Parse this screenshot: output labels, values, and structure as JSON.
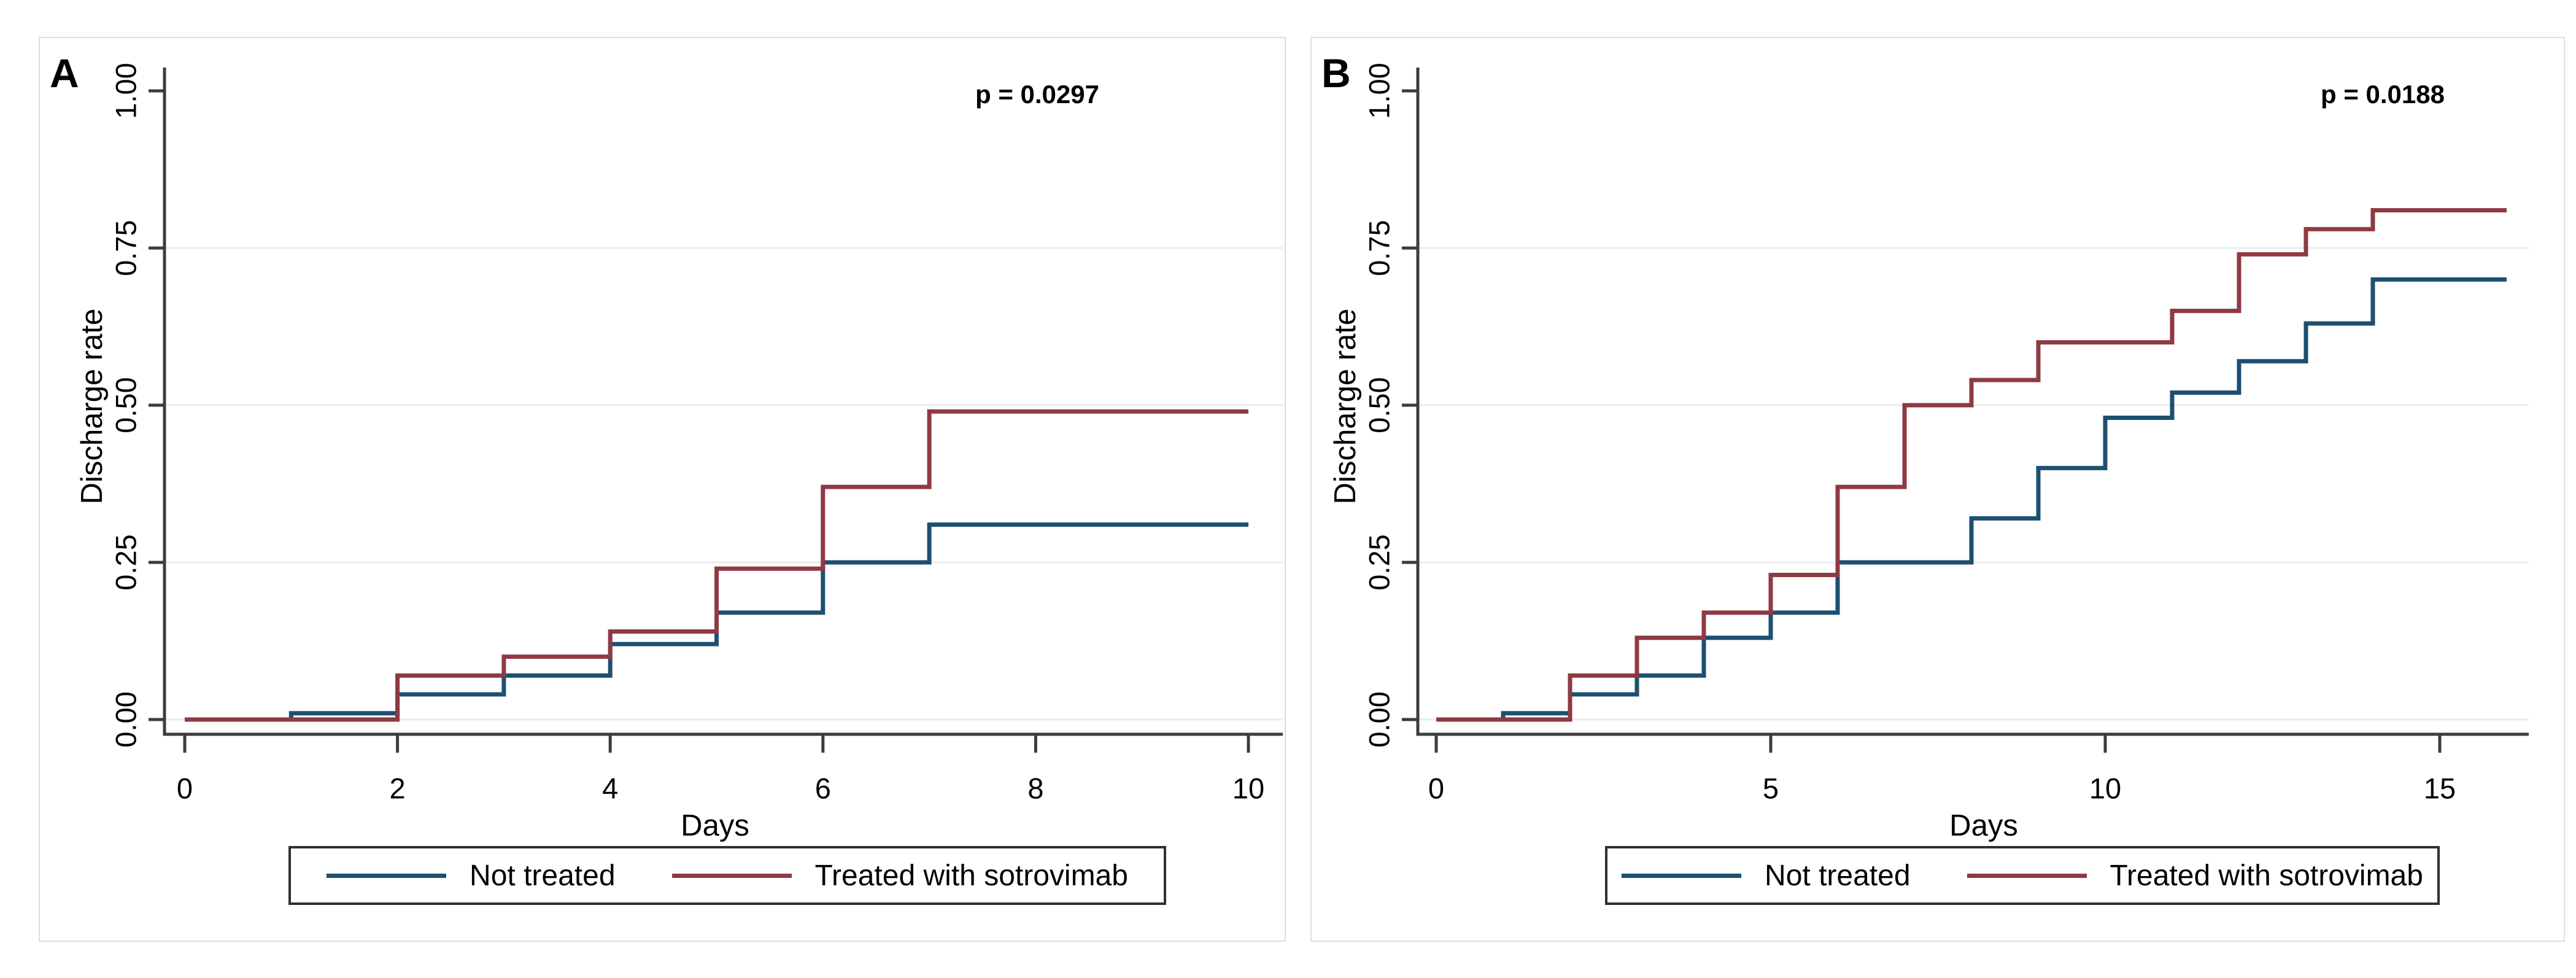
{
  "figure": {
    "background": "#ffffff"
  },
  "styles": {
    "axis_color": "#3c3c3c",
    "grid_color": "#e9eced",
    "text_color": "#000000",
    "legend_border_color": "#303030",
    "panel_border_color": "#dcdfe1",
    "not_treated_color": "#1d4f71",
    "treated_color": "#8f3a43"
  },
  "chart_data": [
    {
      "type": "line",
      "subtype": "step",
      "panel_label": "A",
      "p_value": "p = 0.0297",
      "xlabel": "Days",
      "ylabel": "Discharge rate",
      "xlim": [
        0,
        10.3
      ],
      "ylim": [
        0,
        1.0
      ],
      "x_ticks": [
        0,
        2,
        4,
        6,
        8,
        10
      ],
      "x_tick_labels": [
        "0",
        "2",
        "4",
        "6",
        "8",
        "10"
      ],
      "y_tick_values": [
        0,
        0.25,
        0.5,
        0.75,
        1.0
      ],
      "y_tick_labels": [
        "0.00",
        "0.25",
        "0.50",
        "0.75",
        "1.00"
      ],
      "grid_values": [
        0,
        0.25,
        0.5,
        0.75
      ],
      "grid_on": true,
      "legend_position": "bottom",
      "series": [
        {
          "name": "Not treated",
          "color": "#1d4f71",
          "steps": [
            [
              0,
              0
            ],
            [
              1,
              0.01
            ],
            [
              2,
              0.04
            ],
            [
              3,
              0.07
            ],
            [
              4,
              0.12
            ],
            [
              5,
              0.17
            ],
            [
              6,
              0.25
            ],
            [
              7,
              0.31
            ]
          ],
          "end_x": 10
        },
        {
          "name": "Treated with sotrovimab",
          "color": "#8f3a43",
          "steps": [
            [
              0,
              0
            ],
            [
              2,
              0.07
            ],
            [
              3,
              0.1
            ],
            [
              4,
              0.14
            ],
            [
              5,
              0.24
            ],
            [
              6,
              0.37
            ],
            [
              7,
              0.49
            ]
          ],
          "end_x": 10
        }
      ]
    },
    {
      "type": "line",
      "subtype": "step",
      "panel_label": "B",
      "p_value": "p = 0.0188",
      "xlabel": "Days",
      "ylabel": "Discharge rate",
      "xlim": [
        0,
        16.3
      ],
      "ylim": [
        0,
        1.0
      ],
      "x_ticks": [
        0,
        5,
        10,
        15
      ],
      "x_tick_labels": [
        "0",
        "5",
        "10",
        "15"
      ],
      "y_tick_values": [
        0,
        0.25,
        0.5,
        0.75,
        1.0
      ],
      "y_tick_labels": [
        "0.00",
        "0.25",
        "0.50",
        "0.75",
        "1.00"
      ],
      "grid_values": [
        0,
        0.25,
        0.5,
        0.75
      ],
      "grid_on": true,
      "legend_position": "bottom",
      "series": [
        {
          "name": "Not treated",
          "color": "#1d4f71",
          "steps": [
            [
              0,
              0
            ],
            [
              1,
              0.01
            ],
            [
              2,
              0.04
            ],
            [
              3,
              0.07
            ],
            [
              4,
              0.13
            ],
            [
              5,
              0.17
            ],
            [
              6,
              0.25
            ],
            [
              8,
              0.32
            ],
            [
              9,
              0.4
            ],
            [
              10,
              0.48
            ],
            [
              11,
              0.52
            ],
            [
              12,
              0.57
            ],
            [
              13,
              0.63
            ],
            [
              14,
              0.7
            ]
          ],
          "end_x": 16
        },
        {
          "name": "Treated with sotrovimab",
          "color": "#8f3a43",
          "steps": [
            [
              0,
              0
            ],
            [
              2,
              0.07
            ],
            [
              3,
              0.13
            ],
            [
              4,
              0.17
            ],
            [
              5,
              0.23
            ],
            [
              6,
              0.37
            ],
            [
              7,
              0.5
            ],
            [
              8,
              0.54
            ],
            [
              9,
              0.6
            ],
            [
              11,
              0.65
            ],
            [
              12,
              0.74
            ],
            [
              13,
              0.78
            ],
            [
              14,
              0.81
            ]
          ],
          "end_x": 16
        }
      ]
    }
  ]
}
